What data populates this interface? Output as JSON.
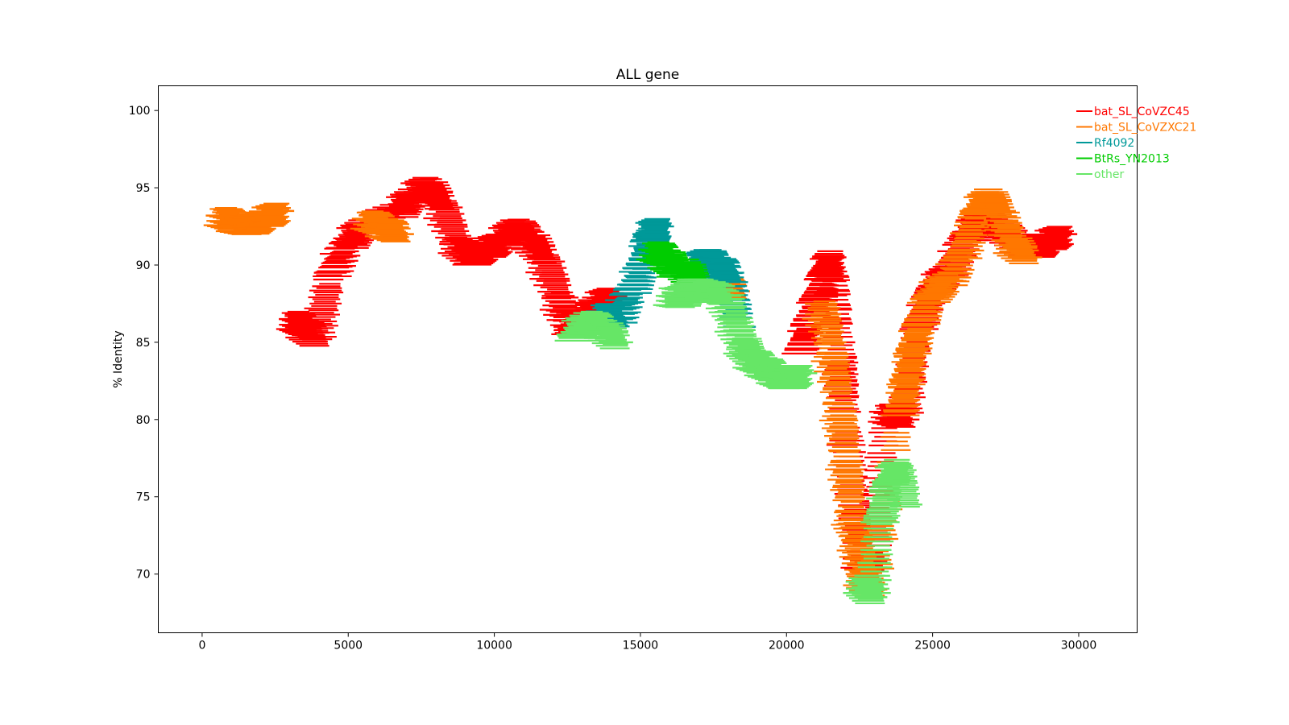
{
  "chart_data": {
    "type": "line",
    "title": "ALL gene",
    "xlabel": "",
    "ylabel": "% Identity",
    "xlim": [
      -1500,
      32000
    ],
    "ylim": [
      66.2,
      101.6
    ],
    "xticks": [
      0,
      5000,
      10000,
      15000,
      20000,
      25000,
      30000
    ],
    "yticks": [
      70,
      75,
      80,
      85,
      90,
      95,
      100
    ],
    "grid": false,
    "legend_position": "top-right",
    "segment_width": 1500,
    "series": [
      {
        "name": "bat_SL_CoVZC45",
        "color": "#ff0000",
        "points": [
          [
            3000,
            86.5
          ],
          [
            3300,
            86.0
          ],
          [
            3700,
            85.2
          ],
          [
            4200,
            89.5
          ],
          [
            4800,
            91.5
          ],
          [
            5300,
            92.5
          ],
          [
            6500,
            93.5
          ],
          [
            7000,
            94.5
          ],
          [
            7500,
            95.2
          ],
          [
            8000,
            94.0
          ],
          [
            8500,
            91.5
          ],
          [
            9000,
            90.5
          ],
          [
            9500,
            91.0
          ],
          [
            10000,
            91.5
          ],
          [
            10500,
            92.5
          ],
          [
            11000,
            91.8
          ],
          [
            11500,
            90.5
          ],
          [
            12000,
            88.0
          ],
          [
            12400,
            86.0
          ],
          [
            12800,
            86.5
          ],
          [
            13300,
            87.5
          ],
          [
            13800,
            88.0
          ],
          [
            20300,
            84.5
          ],
          [
            20600,
            86.5
          ],
          [
            20900,
            88.0
          ],
          [
            21100,
            89.5
          ],
          [
            21300,
            90.5
          ],
          [
            21600,
            85.0
          ],
          [
            21800,
            80.5
          ],
          [
            22300,
            71.0
          ],
          [
            22700,
            70.8
          ],
          [
            23200,
            80.5
          ],
          [
            23800,
            80.0
          ],
          [
            24300,
            86.0
          ],
          [
            24800,
            88.5
          ],
          [
            25300,
            89.5
          ],
          [
            26000,
            92.0
          ],
          [
            26500,
            93.0
          ],
          [
            27000,
            92.5
          ],
          [
            27700,
            91.5
          ],
          [
            28300,
            91.0
          ],
          [
            28700,
            91.5
          ],
          [
            29200,
            92.0
          ]
        ]
      },
      {
        "name": "bat_SL_CoVZXC21",
        "color": "#ff7700",
        "points": [
          [
            500,
            93.2
          ],
          [
            900,
            92.8
          ],
          [
            1400,
            92.5
          ],
          [
            1900,
            93.0
          ],
          [
            2400,
            93.5
          ],
          [
            5500,
            93.0
          ],
          [
            6000,
            92.5
          ],
          [
            6500,
            92.0
          ],
          [
            17600,
            88.8
          ],
          [
            18000,
            88.3
          ],
          [
            21000,
            87.5
          ],
          [
            21300,
            85.0
          ],
          [
            21600,
            81.0
          ],
          [
            21800,
            78.0
          ],
          [
            22000,
            74.0
          ],
          [
            22200,
            72.5
          ],
          [
            22400,
            70.0
          ],
          [
            22700,
            69.0
          ],
          [
            23700,
            80.5
          ],
          [
            23900,
            82.5
          ],
          [
            24100,
            84.5
          ],
          [
            24400,
            86.5
          ],
          [
            24700,
            88.0
          ],
          [
            25300,
            89.0
          ],
          [
            25800,
            90.5
          ],
          [
            26300,
            93.5
          ],
          [
            26700,
            94.5
          ],
          [
            27100,
            93.5
          ],
          [
            27500,
            91.5
          ],
          [
            28000,
            90.5
          ]
        ]
      },
      {
        "name": "Rf4092",
        "color": "#009999",
        "points": [
          [
            13500,
            87.0
          ],
          [
            14000,
            86.5
          ],
          [
            14500,
            88.5
          ],
          [
            14900,
            90.0
          ],
          [
            15100,
            92.0
          ],
          [
            15400,
            92.5
          ],
          [
            16700,
            90.0
          ],
          [
            17100,
            90.5
          ],
          [
            17400,
            90.0
          ],
          [
            17800,
            89.5
          ],
          [
            18200,
            86.0
          ]
        ]
      },
      {
        "name": "BtRs_YN2013",
        "color": "#00cc00",
        "points": [
          [
            15300,
            91.0
          ],
          [
            15700,
            90.5
          ],
          [
            16000,
            89.8
          ],
          [
            16400,
            89.8
          ],
          [
            16700,
            88.8
          ]
        ]
      },
      {
        "name": "other",
        "color": "#66e666",
        "points": [
          [
            12500,
            85.5
          ],
          [
            13000,
            86.5
          ],
          [
            13500,
            86.0
          ],
          [
            14000,
            85.0
          ],
          [
            15900,
            88.0
          ],
          [
            16200,
            87.8
          ],
          [
            16500,
            88.5
          ],
          [
            16900,
            88.5
          ],
          [
            17700,
            88.0
          ],
          [
            18000,
            86.5
          ],
          [
            18300,
            85.0
          ],
          [
            18600,
            84.0
          ],
          [
            19000,
            83.5
          ],
          [
            19400,
            83.0
          ],
          [
            19800,
            82.5
          ],
          [
            20300,
            83.0
          ],
          [
            22400,
            69.5
          ],
          [
            22700,
            68.5
          ],
          [
            23000,
            73.5
          ],
          [
            23300,
            76.0
          ],
          [
            23600,
            77.0
          ],
          [
            23900,
            74.5
          ]
        ]
      }
    ]
  }
}
